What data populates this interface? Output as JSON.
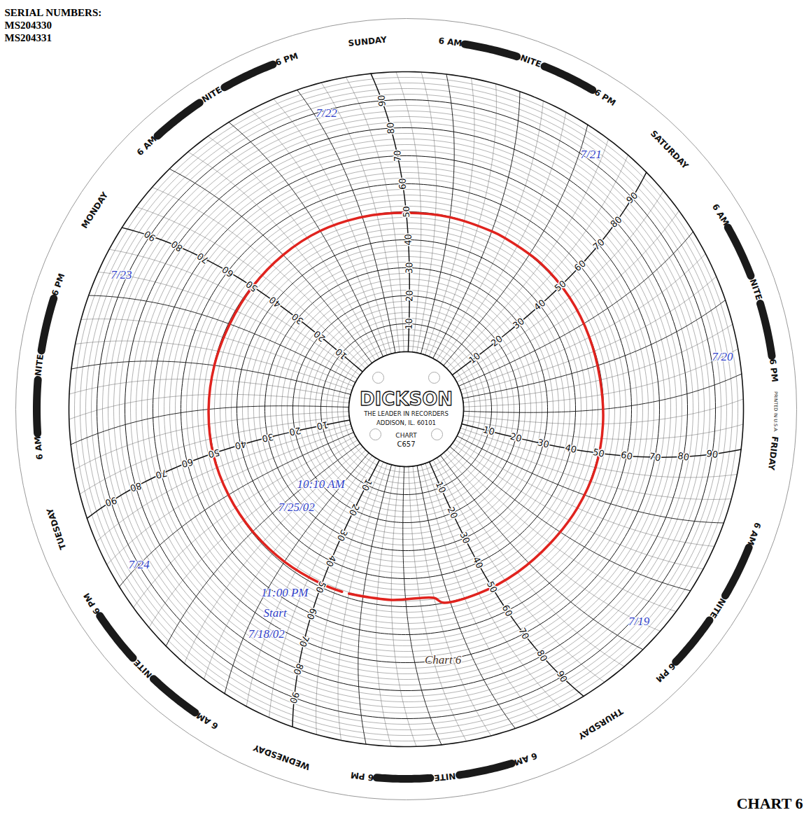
{
  "chart_data": {
    "type": "circular",
    "title": "CHART 6",
    "serial_numbers": {
      "label": "SERIAL NUMBERS:",
      "values": [
        "MS204330",
        "MS204331"
      ]
    },
    "hub": {
      "brand": "DICKSON",
      "slogan": "THE LEADER IN RECORDERS",
      "address": "ADDISON, IL. 60101",
      "chart_label": "CHART",
      "chart_number": "C657"
    },
    "imprint": "PRINTED IN U.S.A.",
    "xlim": [
      0,
      168
    ],
    "xticks": [
      {
        "value": 0,
        "label": "NITE"
      },
      {
        "value": 6,
        "label": "6 AM"
      },
      {
        "value": 12,
        "label": "SUNDAY"
      },
      {
        "value": 18,
        "label": "6 PM"
      },
      {
        "value": 24,
        "label": "NITE"
      },
      {
        "value": 30,
        "label": "6 AM"
      },
      {
        "value": 36,
        "label": "MONDAY"
      },
      {
        "value": 42,
        "label": "6 PM"
      },
      {
        "value": 48,
        "label": "NITE"
      },
      {
        "value": 54,
        "label": "6 AM"
      },
      {
        "value": 60,
        "label": "TUESDAY"
      },
      {
        "value": 66,
        "label": "6 PM"
      },
      {
        "value": 72,
        "label": "NITE"
      },
      {
        "value": 78,
        "label": "6 AM"
      },
      {
        "value": 84,
        "label": "WEDNESDAY"
      },
      {
        "value": 90,
        "label": "6 PM"
      },
      {
        "value": 96,
        "label": "NITE"
      },
      {
        "value": 102,
        "label": "6 AM"
      },
      {
        "value": 108,
        "label": "THURSDAY"
      },
      {
        "value": 114,
        "label": "6 PM"
      },
      {
        "value": 120,
        "label": "NITE"
      },
      {
        "value": 126,
        "label": "6 AM"
      },
      {
        "value": 132,
        "label": "FRIDAY"
      },
      {
        "value": 138,
        "label": "6 PM"
      },
      {
        "value": 144,
        "label": "NITE"
      },
      {
        "value": 150,
        "label": "6 AM"
      },
      {
        "value": 156,
        "label": "SATURDAY"
      },
      {
        "value": 162,
        "label": "6 PM"
      }
    ],
    "ylim": [
      0,
      100
    ],
    "yticks": [
      10,
      20,
      30,
      40,
      50,
      60,
      70,
      80,
      90
    ],
    "grid": true,
    "color": "#e0231e",
    "x": [
      88,
      94,
      100,
      101,
      106,
      112,
      118,
      124,
      130,
      136,
      142,
      148,
      154,
      160,
      166,
      168,
      6,
      12,
      18,
      24,
      30,
      36,
      42,
      48,
      54,
      60,
      66,
      72,
      78,
      84,
      87
    ],
    "values": [
      48.5,
      47.8,
      47.6,
      49.8,
      50.2,
      50.0,
      49.8,
      50.1,
      50.3,
      50.0,
      49.6,
      49.8,
      50.2,
      50.4,
      50.1,
      50.0,
      49.8,
      49.6,
      49.9,
      50.2,
      50.0,
      49.7,
      49.5,
      49.8,
      50.1,
      50.3,
      50.0,
      49.6,
      49.2,
      48.8,
      48.6
    ],
    "annotations": [
      {
        "text": "7/22",
        "x": 17,
        "y": 89,
        "color": "#2f3fc8"
      },
      {
        "text": "7/21",
        "x": 161,
        "y": 92,
        "color": "#2f3fc8"
      },
      {
        "text": "7/20",
        "x": 140,
        "y": 94,
        "color": "#2f3fc8"
      },
      {
        "text": "7/19",
        "x": 116,
        "y": 92,
        "color": "#2f3fc8"
      },
      {
        "text": "7/23",
        "x": 40,
        "y": 92,
        "color": "#2f3fc8"
      },
      {
        "text": "7/24",
        "x": 66,
        "y": 90,
        "color": "#2f3fc8"
      },
      {
        "text": "11:00 PM",
        "x": 80,
        "y": 58,
        "color": "#2f3fc8"
      },
      {
        "text": "Start",
        "x": 80,
        "y": 66,
        "color": "#2f3fc8"
      },
      {
        "text": "7/18/02",
        "x": 80,
        "y": 74,
        "color": "#2f3fc8"
      },
      {
        "text": "10:10 AM",
        "x": 74,
        "y": 20,
        "color": "#2f3fc8"
      },
      {
        "text": "7/25/02",
        "x": 74,
        "y": 32,
        "color": "#2f3fc8"
      },
      {
        "text": "Chart 6",
        "x": 99,
        "y": 70,
        "color": "#4a3426"
      }
    ]
  }
}
